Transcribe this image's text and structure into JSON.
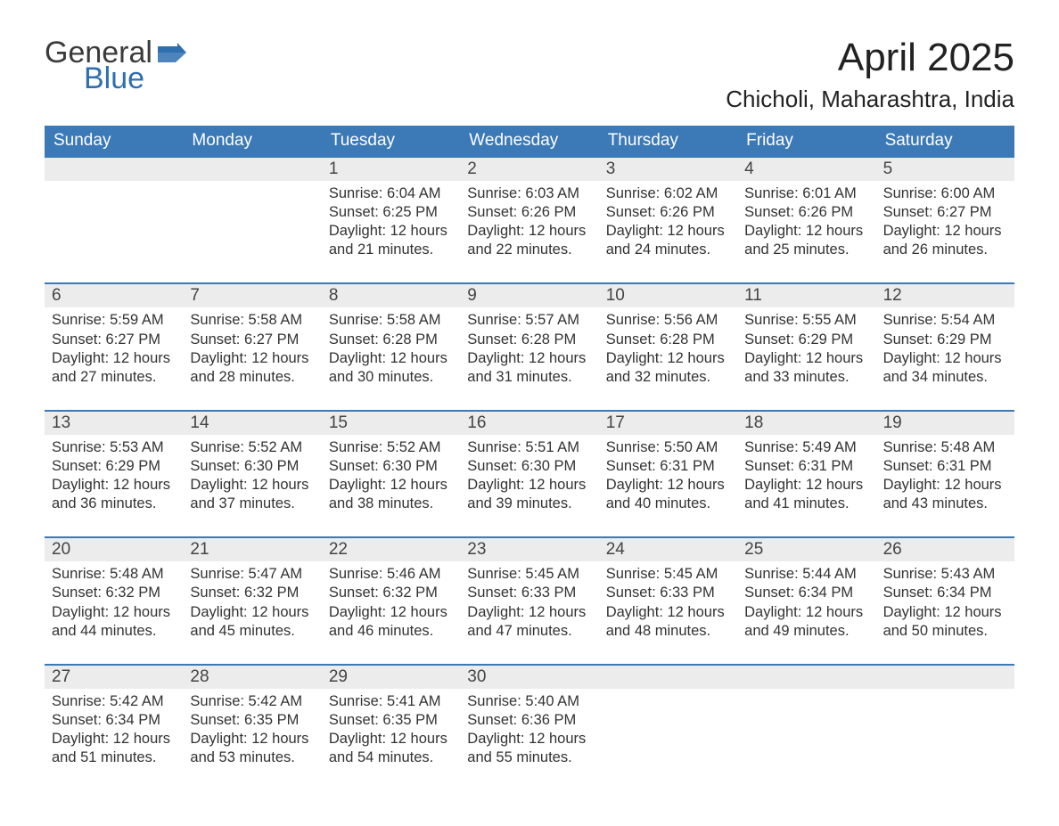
{
  "brand": {
    "word1": "General",
    "word2": "Blue",
    "flag_color": "#2f6fb0",
    "word1_color": "#3a3a3a",
    "word2_color": "#2f6fb0"
  },
  "title": "April 2025",
  "location": "Chicholi, Maharashtra, India",
  "colors": {
    "header_bg": "#3b79b7",
    "header_text": "#ffffff",
    "daynum_bg": "#ececec",
    "week_border": "#3b79b7",
    "body_text": "#333333",
    "page_bg": "#ffffff"
  },
  "fonts": {
    "title_size_pt": 33,
    "location_size_pt": 20,
    "dow_size_pt": 14,
    "daynum_size_pt": 14,
    "body_size_pt": 12
  },
  "days_of_week": [
    "Sunday",
    "Monday",
    "Tuesday",
    "Wednesday",
    "Thursday",
    "Friday",
    "Saturday"
  ],
  "weeks": [
    [
      {
        "n": "",
        "lines": []
      },
      {
        "n": "",
        "lines": []
      },
      {
        "n": "1",
        "lines": [
          "Sunrise: 6:04 AM",
          "Sunset: 6:25 PM",
          "Daylight: 12 hours and 21 minutes."
        ]
      },
      {
        "n": "2",
        "lines": [
          "Sunrise: 6:03 AM",
          "Sunset: 6:26 PM",
          "Daylight: 12 hours and 22 minutes."
        ]
      },
      {
        "n": "3",
        "lines": [
          "Sunrise: 6:02 AM",
          "Sunset: 6:26 PM",
          "Daylight: 12 hours and 24 minutes."
        ]
      },
      {
        "n": "4",
        "lines": [
          "Sunrise: 6:01 AM",
          "Sunset: 6:26 PM",
          "Daylight: 12 hours and 25 minutes."
        ]
      },
      {
        "n": "5",
        "lines": [
          "Sunrise: 6:00 AM",
          "Sunset: 6:27 PM",
          "Daylight: 12 hours and 26 minutes."
        ]
      }
    ],
    [
      {
        "n": "6",
        "lines": [
          "Sunrise: 5:59 AM",
          "Sunset: 6:27 PM",
          "Daylight: 12 hours and 27 minutes."
        ]
      },
      {
        "n": "7",
        "lines": [
          "Sunrise: 5:58 AM",
          "Sunset: 6:27 PM",
          "Daylight: 12 hours and 28 minutes."
        ]
      },
      {
        "n": "8",
        "lines": [
          "Sunrise: 5:58 AM",
          "Sunset: 6:28 PM",
          "Daylight: 12 hours and 30 minutes."
        ]
      },
      {
        "n": "9",
        "lines": [
          "Sunrise: 5:57 AM",
          "Sunset: 6:28 PM",
          "Daylight: 12 hours and 31 minutes."
        ]
      },
      {
        "n": "10",
        "lines": [
          "Sunrise: 5:56 AM",
          "Sunset: 6:28 PM",
          "Daylight: 12 hours and 32 minutes."
        ]
      },
      {
        "n": "11",
        "lines": [
          "Sunrise: 5:55 AM",
          "Sunset: 6:29 PM",
          "Daylight: 12 hours and 33 minutes."
        ]
      },
      {
        "n": "12",
        "lines": [
          "Sunrise: 5:54 AM",
          "Sunset: 6:29 PM",
          "Daylight: 12 hours and 34 minutes."
        ]
      }
    ],
    [
      {
        "n": "13",
        "lines": [
          "Sunrise: 5:53 AM",
          "Sunset: 6:29 PM",
          "Daylight: 12 hours and 36 minutes."
        ]
      },
      {
        "n": "14",
        "lines": [
          "Sunrise: 5:52 AM",
          "Sunset: 6:30 PM",
          "Daylight: 12 hours and 37 minutes."
        ]
      },
      {
        "n": "15",
        "lines": [
          "Sunrise: 5:52 AM",
          "Sunset: 6:30 PM",
          "Daylight: 12 hours and 38 minutes."
        ]
      },
      {
        "n": "16",
        "lines": [
          "Sunrise: 5:51 AM",
          "Sunset: 6:30 PM",
          "Daylight: 12 hours and 39 minutes."
        ]
      },
      {
        "n": "17",
        "lines": [
          "Sunrise: 5:50 AM",
          "Sunset: 6:31 PM",
          "Daylight: 12 hours and 40 minutes."
        ]
      },
      {
        "n": "18",
        "lines": [
          "Sunrise: 5:49 AM",
          "Sunset: 6:31 PM",
          "Daylight: 12 hours and 41 minutes."
        ]
      },
      {
        "n": "19",
        "lines": [
          "Sunrise: 5:48 AM",
          "Sunset: 6:31 PM",
          "Daylight: 12 hours and 43 minutes."
        ]
      }
    ],
    [
      {
        "n": "20",
        "lines": [
          "Sunrise: 5:48 AM",
          "Sunset: 6:32 PM",
          "Daylight: 12 hours and 44 minutes."
        ]
      },
      {
        "n": "21",
        "lines": [
          "Sunrise: 5:47 AM",
          "Sunset: 6:32 PM",
          "Daylight: 12 hours and 45 minutes."
        ]
      },
      {
        "n": "22",
        "lines": [
          "Sunrise: 5:46 AM",
          "Sunset: 6:32 PM",
          "Daylight: 12 hours and 46 minutes."
        ]
      },
      {
        "n": "23",
        "lines": [
          "Sunrise: 5:45 AM",
          "Sunset: 6:33 PM",
          "Daylight: 12 hours and 47 minutes."
        ]
      },
      {
        "n": "24",
        "lines": [
          "Sunrise: 5:45 AM",
          "Sunset: 6:33 PM",
          "Daylight: 12 hours and 48 minutes."
        ]
      },
      {
        "n": "25",
        "lines": [
          "Sunrise: 5:44 AM",
          "Sunset: 6:34 PM",
          "Daylight: 12 hours and 49 minutes."
        ]
      },
      {
        "n": "26",
        "lines": [
          "Sunrise: 5:43 AM",
          "Sunset: 6:34 PM",
          "Daylight: 12 hours and 50 minutes."
        ]
      }
    ],
    [
      {
        "n": "27",
        "lines": [
          "Sunrise: 5:42 AM",
          "Sunset: 6:34 PM",
          "Daylight: 12 hours and 51 minutes."
        ]
      },
      {
        "n": "28",
        "lines": [
          "Sunrise: 5:42 AM",
          "Sunset: 6:35 PM",
          "Daylight: 12 hours and 53 minutes."
        ]
      },
      {
        "n": "29",
        "lines": [
          "Sunrise: 5:41 AM",
          "Sunset: 6:35 PM",
          "Daylight: 12 hours and 54 minutes."
        ]
      },
      {
        "n": "30",
        "lines": [
          "Sunrise: 5:40 AM",
          "Sunset: 6:36 PM",
          "Daylight: 12 hours and 55 minutes."
        ]
      },
      {
        "n": "",
        "lines": []
      },
      {
        "n": "",
        "lines": []
      },
      {
        "n": "",
        "lines": []
      }
    ]
  ]
}
